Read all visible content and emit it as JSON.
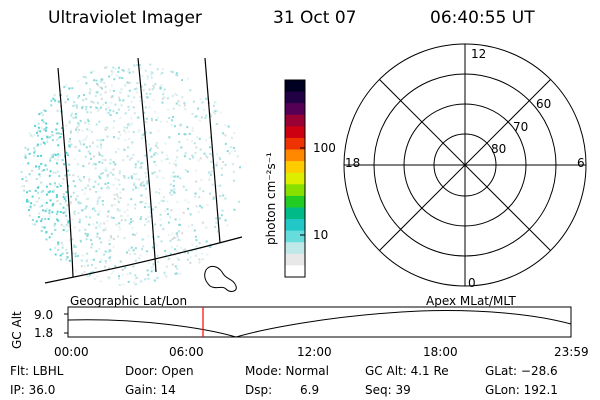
{
  "header": {
    "title": "Ultraviolet Imager",
    "date": "31 Oct 07",
    "time": "06:40:55 UT"
  },
  "colorbar": {
    "unit_label": "photon cm⁻²s⁻¹",
    "ticks": [
      "100",
      "10"
    ],
    "colors": [
      "#ffffff",
      "#e8e8e8",
      "#bfe8e8",
      "#66dcdc",
      "#22c8c8",
      "#00bb88",
      "#22cc22",
      "#88e000",
      "#ddee00",
      "#ffcc00",
      "#ff8800",
      "#ee3300",
      "#cc0011",
      "#990033",
      "#550055",
      "#220044",
      "#000022"
    ]
  },
  "polar_plot": {
    "mlt_labels": {
      "top": "12",
      "right": "6",
      "bottom": "0",
      "left": "18"
    },
    "lat_labels": [
      "60",
      "70",
      "80"
    ]
  },
  "altitude_plot": {
    "left_label": "Geographic Lat/Lon",
    "right_label": "Apex MLat/MLT",
    "y_axis_label": "GC Alt",
    "y_ticks": [
      "9.0",
      "1.8"
    ],
    "x_ticks": [
      "00:00",
      "06:00",
      "12:00",
      "18:00",
      "23:59"
    ],
    "current_time_color": "#ff0000"
  },
  "info": {
    "flt": "Flt: LBHL",
    "door": "Door: Open",
    "mode": "Mode: Normal",
    "gc_alt": "GC Alt: 4.1 Re",
    "glat": "GLat: −28.6",
    "ip": "IP: 36.0",
    "gain": "Gain: 14",
    "dsp_label": "Dsp:",
    "dsp_value": "6.9",
    "seq": "Seq: 39",
    "glon": "GLon: 192.1"
  }
}
